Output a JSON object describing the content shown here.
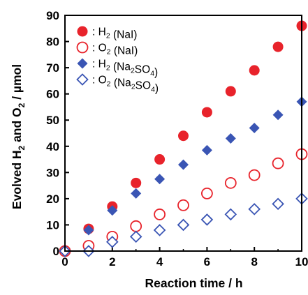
{
  "chart_data": {
    "type": "scatter",
    "x_axis": {
      "label": "Reaction time / h",
      "range": [
        0,
        10
      ],
      "ticks": [
        0,
        2,
        4,
        6,
        8,
        10
      ]
    },
    "y_axis": {
      "label_parts": [
        "Evolved H",
        "2",
        " and O",
        "2",
        " / µmol"
      ],
      "range": [
        0,
        90
      ],
      "ticks": [
        0,
        10,
        20,
        30,
        40,
        50,
        60,
        70,
        80,
        90
      ]
    },
    "legend": {
      "placement": "top-left",
      "entries": [
        {
          "prefix": ": H",
          "sub1": "2",
          "mid": " (NaI)",
          "sub2": "",
          "suffix": ""
        },
        {
          "prefix": ": O",
          "sub1": "2",
          "mid": " (NaI)",
          "sub2": "",
          "suffix": ""
        },
        {
          "prefix": ": H",
          "sub1": "2",
          "mid": " (Na",
          "sub2": "2",
          "mid2": "SO",
          "sub3": "4",
          "suffix": ")"
        },
        {
          "prefix": ": O",
          "sub1": "2",
          "mid": " (Na",
          "sub2": "2",
          "mid2": "SO",
          "sub3": "4",
          "suffix": ")"
        }
      ]
    },
    "series": [
      {
        "marker": "circle-filled",
        "color": "#e8232b",
        "x": [
          0,
          1,
          2,
          3,
          4,
          5,
          6,
          7,
          8,
          9,
          10
        ],
        "y": [
          0,
          8.5,
          17,
          26,
          35,
          44,
          53,
          61,
          69,
          78,
          86
        ]
      },
      {
        "marker": "circle-open",
        "color": "#e8232b",
        "x": [
          0,
          1,
          2,
          3,
          4,
          5,
          6,
          7,
          8,
          9,
          10
        ],
        "y": [
          0,
          2,
          5.5,
          9.5,
          14,
          17.5,
          22,
          26,
          29,
          33.5,
          37
        ]
      },
      {
        "marker": "diamond-filled",
        "color": "#3a55b4",
        "x": [
          0,
          1,
          2,
          3,
          4,
          5,
          6,
          7,
          8,
          9,
          10
        ],
        "y": [
          0,
          8,
          15.5,
          22,
          27.5,
          33,
          38.5,
          43,
          47,
          52,
          57
        ]
      },
      {
        "marker": "diamond-open",
        "color": "#3a55b4",
        "x": [
          0,
          1,
          2,
          3,
          4,
          5,
          6,
          7,
          8,
          9,
          10
        ],
        "y": [
          0,
          0,
          3.5,
          5.5,
          8,
          10,
          12,
          14,
          16,
          18,
          20
        ]
      }
    ]
  }
}
